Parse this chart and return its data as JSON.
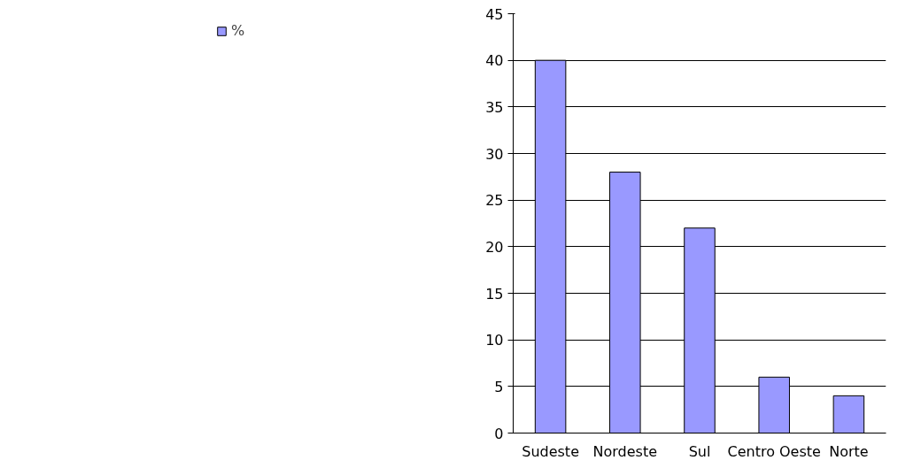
{
  "chart_data": {
    "type": "bar",
    "categories": [
      "Sudeste",
      "Nordeste",
      "Sul",
      "Centro Oeste",
      "Norte"
    ],
    "series": [
      {
        "name": "%",
        "color": "#9999ff",
        "values": [
          40,
          28,
          22,
          6,
          4
        ]
      }
    ],
    "ylim": [
      0,
      45
    ],
    "yticks": [
      0,
      5,
      10,
      15,
      20,
      25,
      30,
      35,
      40,
      45
    ],
    "grid": "y",
    "legend": "left"
  }
}
